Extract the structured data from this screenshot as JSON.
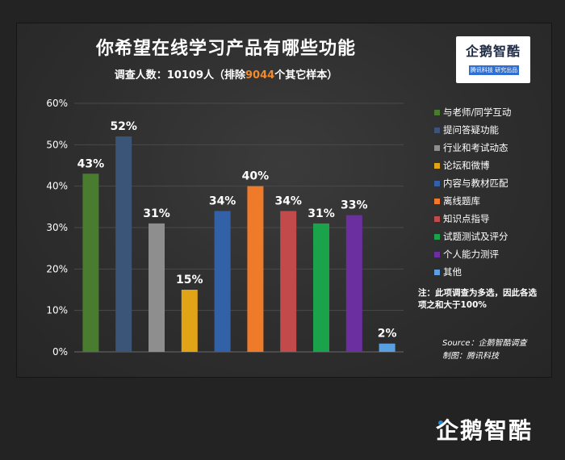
{
  "header": {
    "title": "你希望在线学习产品有哪些功能",
    "subtitle_prefix": "调查人数：10109人（排除",
    "subtitle_highlight": "9044",
    "subtitle_suffix": "个其它样本）"
  },
  "logo": {
    "name": "企鹅智酷",
    "tagline": "腾讯科技  研究出品"
  },
  "note": "注：此项调查为多选，因此各选项之和大于100%",
  "source": "Source：企鹅智酷调查",
  "credit": "制图：腾讯科技",
  "bottom_logo": "企鹅智酷",
  "colors": {
    "highlight": "#f08a2c",
    "background": "#2e2e2e"
  },
  "chart_data": {
    "type": "bar",
    "title": "你希望在线学习产品有哪些功能",
    "categories": [
      "与老师/同学互动",
      "提问答疑功能",
      "行业和考试动态",
      "论坛和微博",
      "内容与教材匹配",
      "离线题库",
      "知识点指导",
      "试题测试及评分",
      "个人能力测评",
      "其他"
    ],
    "values": [
      43,
      52,
      31,
      15,
      34,
      40,
      34,
      31,
      33,
      2
    ],
    "value_labels": [
      "43%",
      "52%",
      "31%",
      "15%",
      "34%",
      "40%",
      "34%",
      "31%",
      "33%",
      "2%"
    ],
    "colors": [
      "#4a7c2f",
      "#3b5578",
      "#8e8e8e",
      "#e0a416",
      "#3361a8",
      "#ef7b2a",
      "#c24a4a",
      "#1aa34a",
      "#6b2fa0",
      "#5aa0e0"
    ],
    "ylim": [
      0,
      60
    ],
    "yticks": [
      0,
      10,
      20,
      30,
      40,
      50,
      60
    ],
    "ytick_labels": [
      "0%",
      "10%",
      "20%",
      "30%",
      "40%",
      "50%",
      "60%"
    ],
    "legend_position": "right",
    "grid": true
  }
}
